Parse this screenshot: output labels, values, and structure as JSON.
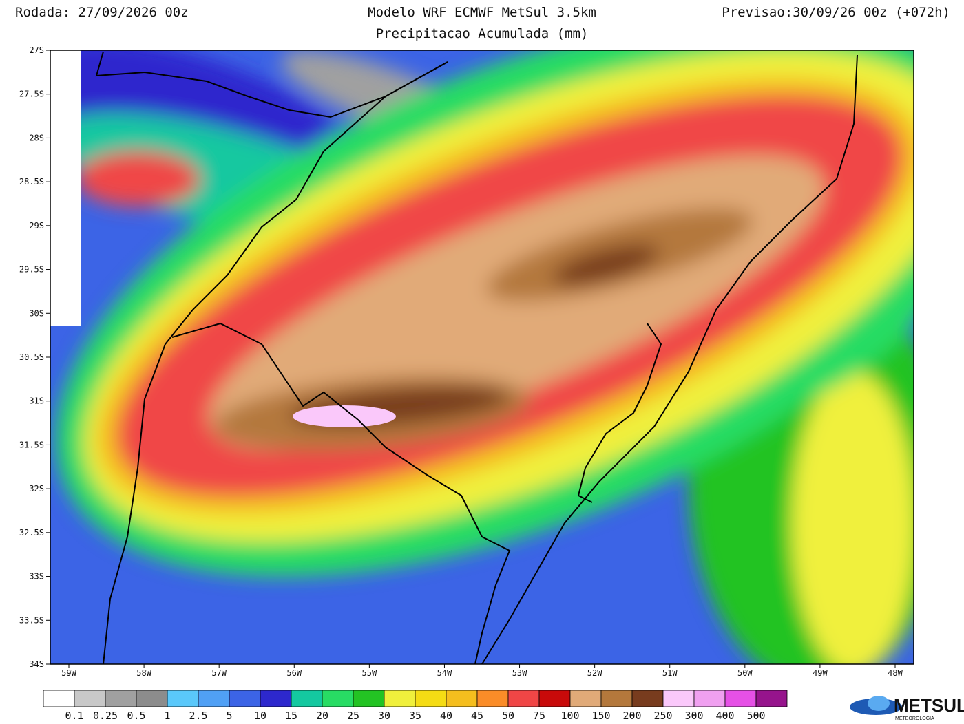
{
  "header": {
    "run": "Rodada: 27/09/2026 00z",
    "title": "Modelo WRF ECMWF MetSul 3.5km",
    "subtitle": "Precipitacao Acumulada (mm)",
    "forecast": "Previsao:30/09/26 00z (+072h)"
  },
  "map": {
    "lat_labels": [
      "27S",
      "27.5S",
      "28S",
      "28.5S",
      "29S",
      "29.5S",
      "30S",
      "30.5S",
      "31S",
      "31.5S",
      "32S",
      "32.5S",
      "33S",
      "33.5S",
      "34S"
    ],
    "lon_labels": [
      "59W",
      "58W",
      "57W",
      "56W",
      "55W",
      "54W",
      "53W",
      "52W",
      "51W",
      "50W",
      "49W",
      "48W"
    ]
  },
  "legend": {
    "colors": [
      "#ffffff",
      "#c8c8c8",
      "#a0a0a0",
      "#8c8c8c",
      "#5ac8fa",
      "#50a0f5",
      "#3c64e6",
      "#2d28cd",
      "#14c8a0",
      "#28dc64",
      "#23c323",
      "#f0f03c",
      "#f5dc14",
      "#f5be1e",
      "#fa8c28",
      "#f04646",
      "#c80a0a",
      "#e1aa78",
      "#b4783c",
      "#783c1e",
      "#fac8fa",
      "#f0a0f0",
      "#e650e6",
      "#96148c"
    ],
    "labels": [
      "0.1",
      "0.25",
      "0.5",
      "1",
      "2.5",
      "5",
      "10",
      "15",
      "20",
      "25",
      "30",
      "35",
      "40",
      "45",
      "50",
      "75",
      "100",
      "150",
      "200",
      "250",
      "300",
      "400",
      "500"
    ]
  },
  "logo": {
    "name": "METSUL",
    "tagline": "METEOROLOGIA"
  }
}
